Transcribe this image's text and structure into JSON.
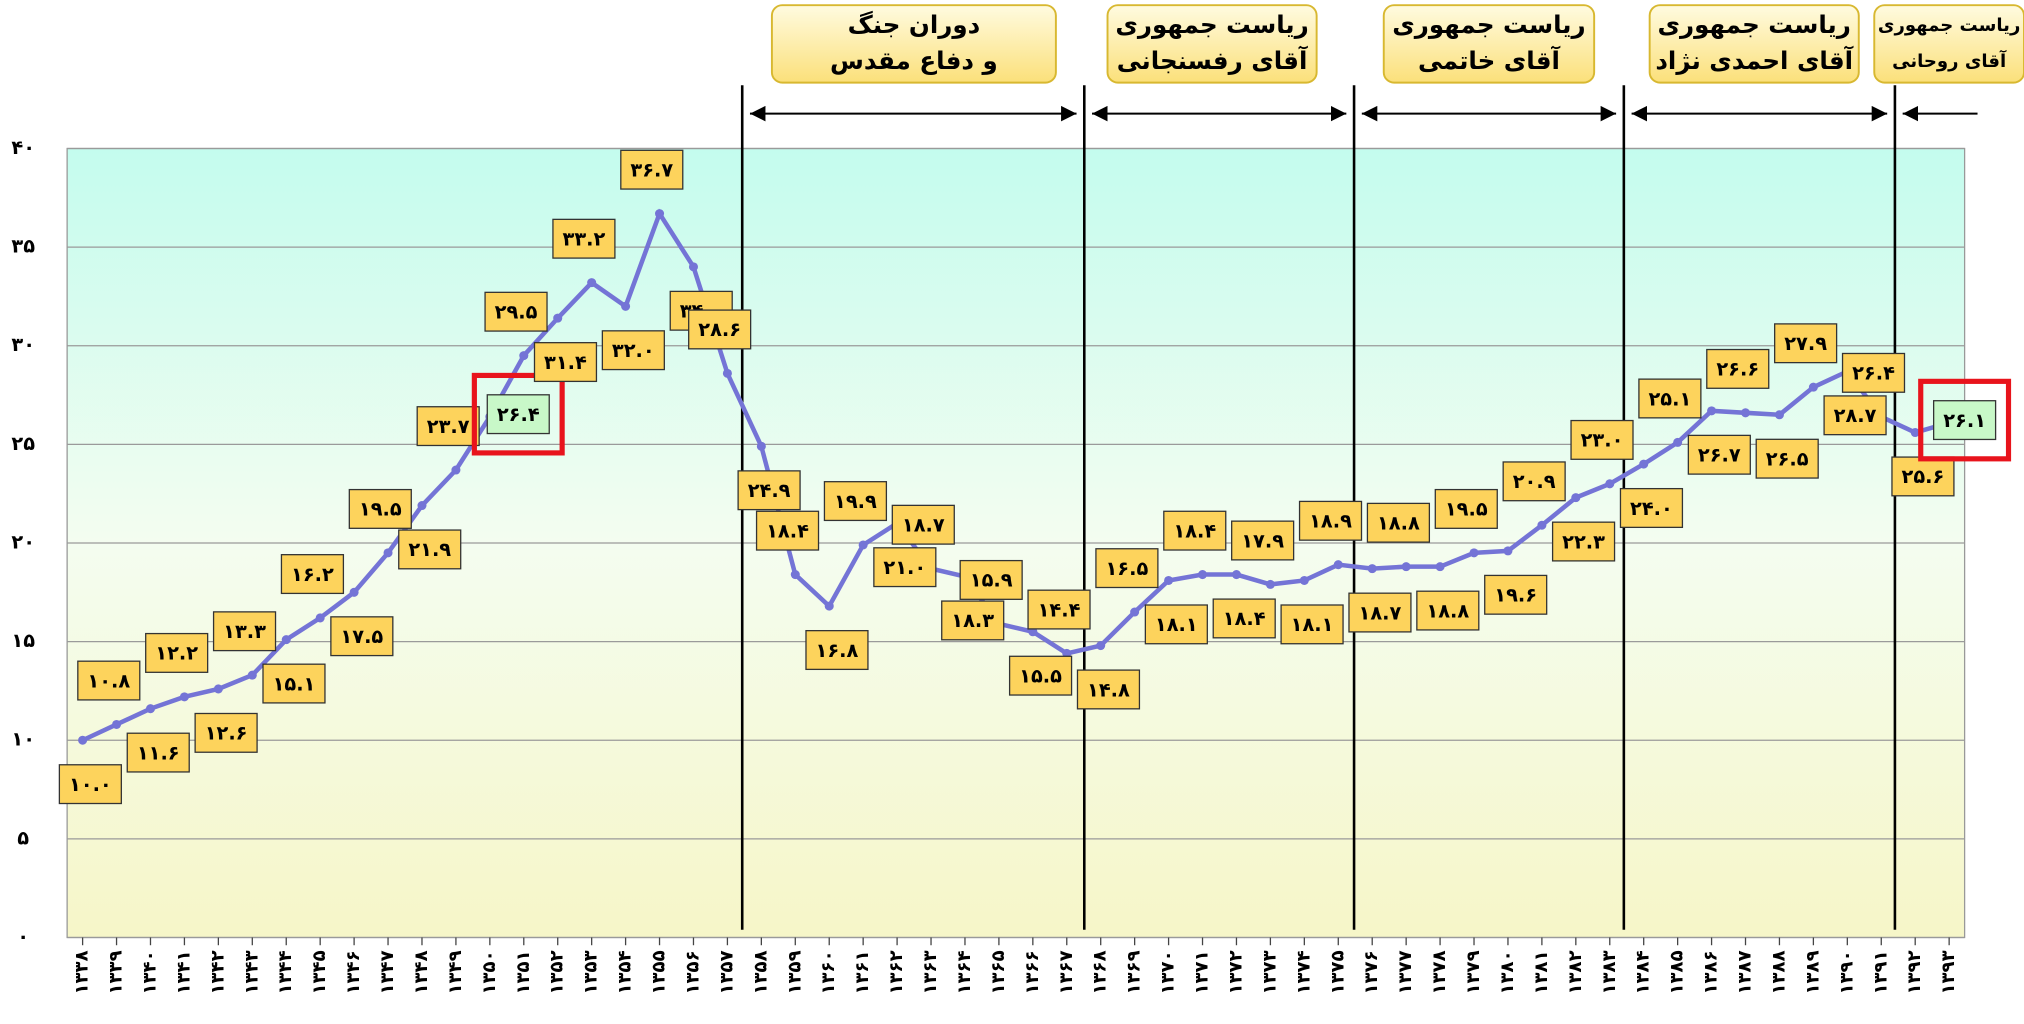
{
  "chart_data": {
    "type": "line",
    "categories": [
      "۱۳۳۸",
      "۱۳۳۹",
      "۱۳۴۰",
      "۱۳۴۱",
      "۱۳۴۲",
      "۱۳۴۳",
      "۱۳۴۴",
      "۱۳۴۵",
      "۱۳۴۶",
      "۱۳۴۷",
      "۱۳۴۸",
      "۱۳۴۹",
      "۱۳۵۰",
      "۱۳۵۱",
      "۱۳۵۲",
      "۱۳۵۳",
      "۱۳۵۴",
      "۱۳۵۵",
      "۱۳۵۶",
      "۱۳۵۷",
      "۱۳۵۸",
      "۱۳۵۹",
      "۱۳۶۰",
      "۱۳۶۱",
      "۱۳۶۲",
      "۱۳۶۳",
      "۱۳۶۴",
      "۱۳۶۵",
      "۱۳۶۶",
      "۱۳۶۷",
      "۱۳۶۸",
      "۱۳۶۹",
      "۱۳۷۰",
      "۱۳۷۱",
      "۱۳۷۲",
      "۱۳۷۳",
      "۱۳۷۴",
      "۱۳۷۵",
      "۱۳۷۶",
      "۱۳۷۷",
      "۱۳۷۸",
      "۱۳۷۹",
      "۱۳۸۰",
      "۱۳۸۱",
      "۱۳۸۲",
      "۱۳۸۳",
      "۱۳۸۴",
      "۱۳۸۵",
      "۱۳۸۶",
      "۱۳۸۷",
      "۱۳۸۸",
      "۱۳۸۹",
      "۱۳۹۰",
      "۱۳۹۱",
      "۱۳۹۲",
      "۱۳۹۳"
    ],
    "values": [
      10.0,
      10.8,
      11.6,
      12.2,
      12.6,
      13.3,
      15.1,
      16.2,
      17.5,
      19.5,
      21.9,
      23.7,
      26.4,
      29.5,
      31.4,
      33.2,
      32.0,
      36.7,
      34.0,
      28.6,
      24.9,
      18.4,
      16.8,
      19.9,
      21.0,
      18.7,
      18.3,
      15.9,
      15.5,
      14.4,
      14.8,
      16.5,
      18.1,
      18.4,
      18.4,
      17.9,
      18.1,
      18.9,
      18.7,
      18.8,
      18.8,
      19.5,
      19.6,
      20.9,
      22.3,
      23.0,
      24.0,
      25.1,
      26.7,
      26.6,
      26.5,
      27.9,
      28.7,
      26.4,
      25.6,
      26.1
    ],
    "value_labels": [
      "۱۰.۰",
      "۱۰.۸",
      "۱۱.۶",
      "۱۲.۲",
      "۱۲.۶",
      "۱۳.۳",
      "۱۵.۱",
      "۱۶.۲",
      "۱۷.۵",
      "۱۹.۵",
      "۲۱.۹",
      "۲۳.۷",
      "۲۶.۴",
      "۲۹.۵",
      "۳۱.۴",
      "۳۳.۲",
      "۳۲.۰",
      "۳۶.۷",
      "۳۴.۰",
      "۲۸.۶",
      "۲۴.۹",
      "۱۸.۴",
      "۱۶.۸",
      "۱۹.۹",
      "۲۱.۰",
      "۱۸.۷",
      "۱۸.۳",
      "۱۵.۹",
      "۱۵.۵",
      "۱۴.۴",
      "۱۴.۸",
      "۱۶.۵",
      "۱۸.۱",
      "۱۸.۴",
      "۱۸.۴",
      "۱۷.۹",
      "۱۸.۱",
      "۱۸.۹",
      "۱۸.۷",
      "۱۸.۸",
      "۱۸.۸",
      "۱۹.۵",
      "۱۹.۶",
      "۲۰.۹",
      "۲۲.۳",
      "۲۳.۰",
      "۲۴.۰",
      "۲۵.۱",
      "۲۶.۷",
      "۲۶.۶",
      "۲۶.۵",
      "۲۷.۹",
      "۲۸.۷",
      "۲۶.۴",
      "۲۵.۶",
      "۲۶.۱"
    ],
    "color": "#7474d6",
    "highlight_indices": [
      12,
      55
    ],
    "ylim": [
      0,
      40
    ],
    "yticks": [
      {
        "value": 0,
        "label": "۰"
      },
      {
        "value": 5,
        "label": "۵"
      },
      {
        "value": 10,
        "label": "۱۰"
      },
      {
        "value": 15,
        "label": "۱۵"
      },
      {
        "value": 20,
        "label": "۲۰"
      },
      {
        "value": 25,
        "label": "۲۵"
      },
      {
        "value": 30,
        "label": "۳۰"
      },
      {
        "value": 35,
        "label": "۳۵"
      },
      {
        "value": 40,
        "label": "۴۰"
      }
    ],
    "grid": true,
    "eras": [
      {
        "lines": [
          "دوران جنگ",
          "و دفاع مقدس"
        ]
      },
      {
        "lines": [
          "ریاست جمهوری",
          "آقای رفسنجانی"
        ]
      },
      {
        "lines": [
          "ریاست جمهوری",
          "آقای خاتمی"
        ]
      },
      {
        "lines": [
          "ریاست جمهوری",
          "آقای احمدی نژاد"
        ]
      },
      {
        "lines": [
          "ریاست جمهوری",
          "آقای روحانی"
        ]
      }
    ]
  }
}
